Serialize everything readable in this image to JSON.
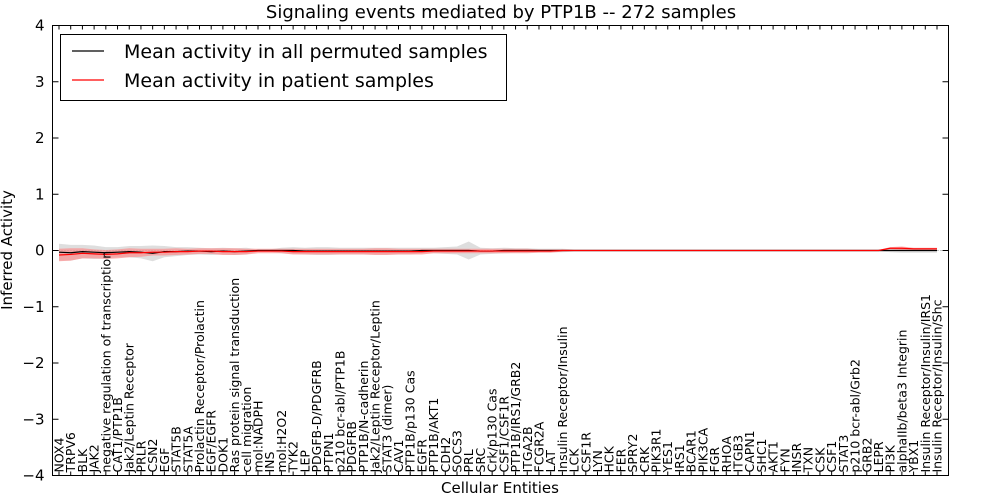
{
  "chart_data": {
    "type": "line",
    "title": "Signaling events mediated by PTP1B -- 272 samples",
    "xlabel": "Cellular Entities",
    "ylabel": "Inferred Activity",
    "ylim": [
      -4,
      4
    ],
    "yticks": [
      -4,
      -3,
      -2,
      -1,
      0,
      1,
      2,
      3,
      4
    ],
    "ytick_labels": [
      "−4",
      "−3",
      "−2",
      "−1",
      "0",
      "1",
      "2",
      "3",
      "4"
    ],
    "legend": {
      "placement": "top-left",
      "entries": [
        "Mean activity in all permuted samples",
        "Mean activity in patient samples"
      ]
    },
    "colors": {
      "permuted_line": "#000000",
      "patient_line": "#ff0000",
      "permuted_band": "#c8c8c8",
      "patient_band": "#ff8080"
    },
    "categories": [
      "NOX4",
      "TRPV6",
      "BLK",
      "JAK2",
      "negative regulation of transcription",
      "CAT1/PTP1B",
      "Jak2/Leptin Receptor",
      "PRLR",
      "CSN2",
      "EGF",
      "STAT5B",
      "STAT5A",
      "Prolactin Receptor/Prolactin",
      "EGF/EGFR",
      "DOK1",
      "Ras protein signal transduction",
      "cell migration",
      "mol:NADPH",
      "INS",
      "mol:H2O2",
      "TYK2",
      "LEP",
      "PDGFB-D/PDGFRB",
      "PTPN1",
      "p210 bcr-abl/PTP1B",
      "PDGFRB",
      "PTP1B/N-cadherin",
      "Jak2/Leptin Receptor/Leptin",
      "STAT3 (dimer)",
      "CAV1",
      "PTP1B/p130 Cas",
      "EGFR",
      "PTP1B/AKT1",
      "CDH2",
      "SOCS3",
      "PRL",
      "SRC",
      "Crk/p130 Cas",
      "CSF1/CSF1R",
      "PTP1B/IRS1/GRB2",
      "ITGA2B",
      "FCGR2A",
      "LAT",
      "Insulin Receptor/Insulin",
      "LCK",
      "CSF1R",
      "LYN",
      "HCK",
      "FER",
      "SPRY2",
      "CRK",
      "PIK3R1",
      "YES1",
      "IRS1",
      "BCAR1",
      "PIK3CA",
      "FGR",
      "RHOA",
      "ITGB3",
      "CAPN1",
      "SHC1",
      "AKT1",
      "FYN",
      "INSR",
      "TXN",
      "CSK",
      "CSF1",
      "STAT3",
      "p210 bcr-abl/Grb2",
      "GRB2",
      "LEPR",
      "PI3K",
      "alphaIIb/beta3 Integrin",
      "YBX1",
      "Insulin Receptor/Insulin/IRS1",
      "Insulin Receptor/Insulin/Shc"
    ],
    "series": [
      {
        "name": "Mean activity in all permuted samples",
        "values": [
          -0.03,
          -0.04,
          -0.02,
          -0.03,
          -0.04,
          -0.03,
          -0.02,
          -0.03,
          -0.05,
          -0.02,
          -0.02,
          -0.01,
          -0.01,
          -0.02,
          -0.01,
          -0.02,
          -0.01,
          0.0,
          0.0,
          0.0,
          0.0,
          -0.01,
          -0.01,
          -0.01,
          -0.01,
          -0.01,
          -0.01,
          -0.01,
          -0.01,
          -0.01,
          -0.01,
          0.0,
          0.0,
          0.0,
          0.0,
          0.0,
          -0.01,
          -0.01,
          0.0,
          0.0,
          0.0,
          0.0,
          0.0,
          0.0,
          0.0,
          0.0,
          0.0,
          0.0,
          0.0,
          0.0,
          0.0,
          0.0,
          0.0,
          0.0,
          0.0,
          0.0,
          0.0,
          0.0,
          0.0,
          0.0,
          0.0,
          0.0,
          0.0,
          0.0,
          0.0,
          0.0,
          0.0,
          0.0,
          0.0,
          0.0,
          0.0,
          0.0,
          0.0,
          0.0,
          0.0,
          0.0
        ],
        "band": [
          0.15,
          0.14,
          0.12,
          0.12,
          0.1,
          0.09,
          0.1,
          0.11,
          0.14,
          0.1,
          0.08,
          0.07,
          0.06,
          0.06,
          0.06,
          0.06,
          0.06,
          0.02,
          0.02,
          0.05,
          0.06,
          0.06,
          0.07,
          0.07,
          0.06,
          0.06,
          0.06,
          0.06,
          0.06,
          0.06,
          0.06,
          0.05,
          0.05,
          0.06,
          0.07,
          0.16,
          0.06,
          0.05,
          0.05,
          0.04,
          0.04,
          0.03,
          0.03,
          0.03,
          0.02,
          0.02,
          0.02,
          0.02,
          0.02,
          0.02,
          0.02,
          0.02,
          0.02,
          0.02,
          0.02,
          0.02,
          0.02,
          0.02,
          0.02,
          0.02,
          0.02,
          0.02,
          0.02,
          0.02,
          0.02,
          0.02,
          0.02,
          0.02,
          0.02,
          0.02,
          0.02,
          0.03,
          0.04,
          0.04,
          0.04,
          0.04
        ]
      },
      {
        "name": "Mean activity in patient samples",
        "values": [
          -0.08,
          -0.07,
          -0.05,
          -0.06,
          -0.07,
          -0.06,
          -0.04,
          -0.04,
          -0.03,
          -0.03,
          -0.02,
          -0.02,
          -0.01,
          -0.01,
          -0.02,
          -0.02,
          -0.02,
          -0.01,
          -0.01,
          -0.01,
          -0.02,
          -0.02,
          -0.02,
          -0.02,
          -0.02,
          -0.02,
          -0.02,
          -0.02,
          -0.02,
          -0.02,
          -0.02,
          -0.02,
          -0.01,
          -0.01,
          -0.01,
          -0.01,
          -0.01,
          -0.01,
          -0.01,
          -0.01,
          -0.01,
          -0.01,
          -0.01,
          0.0,
          0.0,
          0.0,
          0.0,
          0.0,
          0.0,
          0.0,
          0.0,
          0.0,
          0.0,
          0.0,
          0.0,
          0.0,
          0.0,
          0.0,
          0.0,
          0.0,
          0.0,
          0.0,
          0.0,
          0.0,
          0.0,
          0.0,
          0.0,
          0.0,
          0.0,
          0.0,
          0.0,
          0.04,
          0.04,
          0.03,
          0.03,
          0.03
        ],
        "band": [
          0.11,
          0.11,
          0.09,
          0.08,
          0.08,
          0.08,
          0.08,
          0.07,
          0.06,
          0.06,
          0.06,
          0.05,
          0.05,
          0.05,
          0.06,
          0.06,
          0.05,
          0.04,
          0.04,
          0.04,
          0.05,
          0.05,
          0.05,
          0.05,
          0.05,
          0.05,
          0.05,
          0.06,
          0.06,
          0.05,
          0.05,
          0.05,
          0.04,
          0.04,
          0.04,
          0.04,
          0.04,
          0.04,
          0.04,
          0.04,
          0.04,
          0.03,
          0.03,
          0.02,
          0.01,
          0.01,
          0.01,
          0.01,
          0.01,
          0.01,
          0.01,
          0.01,
          0.01,
          0.01,
          0.01,
          0.01,
          0.01,
          0.01,
          0.01,
          0.01,
          0.01,
          0.01,
          0.01,
          0.01,
          0.01,
          0.01,
          0.01,
          0.01,
          0.01,
          0.01,
          0.01,
          0.02,
          0.03,
          0.02,
          0.02,
          0.02
        ]
      }
    ]
  }
}
